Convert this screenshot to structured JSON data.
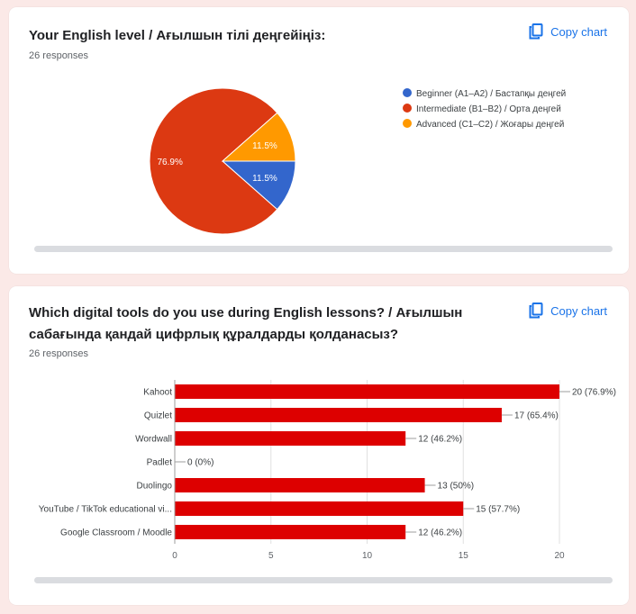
{
  "cards": [
    {
      "title": "Your English level / Ағылшын тілі деңгейіңіз:",
      "responses": "26 responses",
      "copy_label": "Copy chart"
    },
    {
      "title": "Which digital tools do you use during English lessons? / Ағылшын сабағында қандай цифрлық құралдарды қолданасыз?",
      "responses": "26 responses",
      "copy_label": "Copy chart"
    }
  ],
  "chart_data": [
    {
      "type": "pie",
      "slices": [
        {
          "label": "Beginner (A1–A2) / Бастапқы деңгей",
          "percent": 11.5,
          "value_label": "11.5%",
          "color": "#3366cc"
        },
        {
          "label": "Intermediate (B1–B2) / Орта деңгей",
          "percent": 76.9,
          "value_label": "76.9%",
          "color": "#dc3912"
        },
        {
          "label": "Advanced (C1–C2) / Жоғары деңгей",
          "percent": 11.5,
          "value_label": "11.5%",
          "color": "#ff9900"
        }
      ],
      "legend": "right"
    },
    {
      "type": "bar",
      "orientation": "horizontal",
      "categories": [
        "Kahoot",
        "Quizlet",
        "Wordwall",
        "Padlet",
        "Duolingo",
        "YouTube / TikTok educational vi...",
        "Google Classroom / Moodle"
      ],
      "values": [
        20,
        17,
        12,
        0,
        13,
        15,
        12
      ],
      "value_labels": [
        "20 (76.9%)",
        "17 (65.4%)",
        "12 (46.2%)",
        "0 (0%)",
        "13 (50%)",
        "15 (57.7%)",
        "12 (46.2%)"
      ],
      "xlim": [
        0,
        20
      ],
      "xticks": [
        "0",
        "5",
        "10",
        "15",
        "20"
      ],
      "bar_color": "#dd0000",
      "grid": true
    }
  ]
}
